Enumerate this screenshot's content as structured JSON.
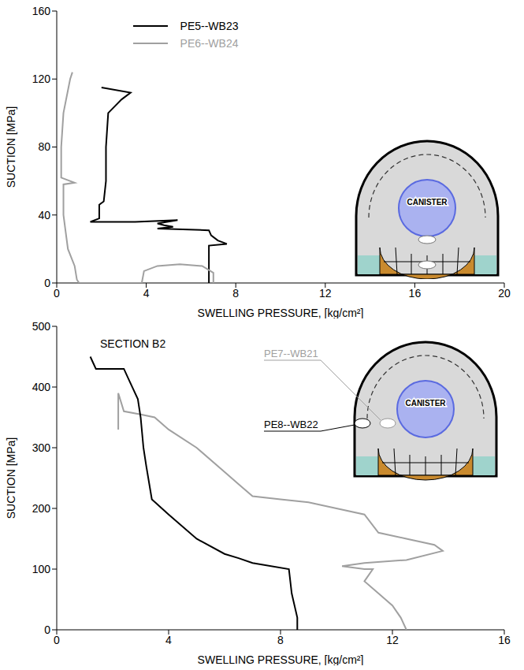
{
  "chart_data": [
    {
      "type": "line",
      "x_label": "SWELLING PRESSURE, [kg/cm²]",
      "y_label": "SUCTION [MPa]",
      "xlim": [
        0,
        20
      ],
      "xticks": [
        0,
        4,
        8,
        12,
        16,
        20
      ],
      "ylim": [
        0,
        160
      ],
      "yticks": [
        0,
        40,
        80,
        120,
        160
      ],
      "legend": "top",
      "annotations": [
        "CANISTER"
      ],
      "series": [
        {
          "name": "PE5--WB23",
          "color": "#000000",
          "x": [
            2.0,
            3.3,
            2.9,
            2.3,
            2.2,
            2.2,
            2.1,
            1.9,
            1.9,
            1.5,
            3.5,
            5.4,
            4.5,
            4.8,
            5.2,
            4.5,
            6.8,
            6.9,
            7.2,
            7.6,
            6.8,
            6.8,
            6.8
          ],
          "values": [
            115,
            112,
            108,
            100,
            80,
            60,
            48,
            46,
            38,
            36,
            36,
            37,
            35,
            34,
            33,
            32,
            31,
            28,
            25,
            23,
            22,
            10,
            0
          ]
        },
        {
          "name": "PE6--WB24",
          "color": "#a0a0a0",
          "x": [
            0.7,
            0.6,
            0.3,
            0.2,
            0.2,
            0.8,
            0.3,
            0.3,
            0.4,
            0.5,
            0.8,
            0.9,
            1.0,
            3.8,
            3.9,
            4.5,
            5.5,
            6.5,
            7.0,
            7.0
          ],
          "values": [
            124,
            120,
            100,
            80,
            62,
            59,
            58,
            40,
            30,
            20,
            10,
            2,
            0,
            0,
            7,
            10,
            11,
            10,
            6,
            0
          ]
        }
      ]
    },
    {
      "type": "line",
      "title": "SECTION B2",
      "x_label": "SWELLING PRESSURE, [kg/cm²]",
      "y_label": "SUCTION [MPa]",
      "xlim": [
        0,
        16
      ],
      "xticks": [
        0,
        4,
        8,
        12,
        16
      ],
      "ylim": [
        0,
        500
      ],
      "yticks": [
        0,
        100,
        200,
        300,
        400,
        500
      ],
      "annotations": [
        "CANISTER"
      ],
      "series": [
        {
          "name": "PE7--WB21",
          "color": "#a0a0a0",
          "x": [
            2.2,
            2.2,
            2.4,
            3.0,
            3.5,
            4.0,
            5.0,
            6.0,
            6.5,
            7.0,
            8.0,
            9.0,
            10.0,
            11.0,
            11.5,
            12.5,
            13.5,
            13.8,
            12.5,
            11.0,
            10.2,
            11.0,
            11.3,
            11.0,
            11.5,
            12.0,
            12.3,
            12.5
          ],
          "values": [
            330,
            390,
            360,
            355,
            350,
            330,
            300,
            260,
            240,
            220,
            215,
            210,
            200,
            190,
            160,
            150,
            140,
            130,
            115,
            110,
            105,
            100,
            100,
            80,
            60,
            40,
            20,
            0
          ]
        },
        {
          "name": "PE8--WB22",
          "color": "#000000",
          "x": [
            1.2,
            1.4,
            2.4,
            2.6,
            2.9,
            3.0,
            3.1,
            3.2,
            3.4,
            4.0,
            5.0,
            6.0,
            6.5,
            7.0,
            8.3,
            8.4,
            8.6,
            8.6
          ],
          "values": [
            450,
            430,
            430,
            410,
            380,
            350,
            300,
            270,
            215,
            190,
            150,
            125,
            118,
            110,
            100,
            60,
            20,
            0
          ]
        }
      ]
    }
  ]
}
